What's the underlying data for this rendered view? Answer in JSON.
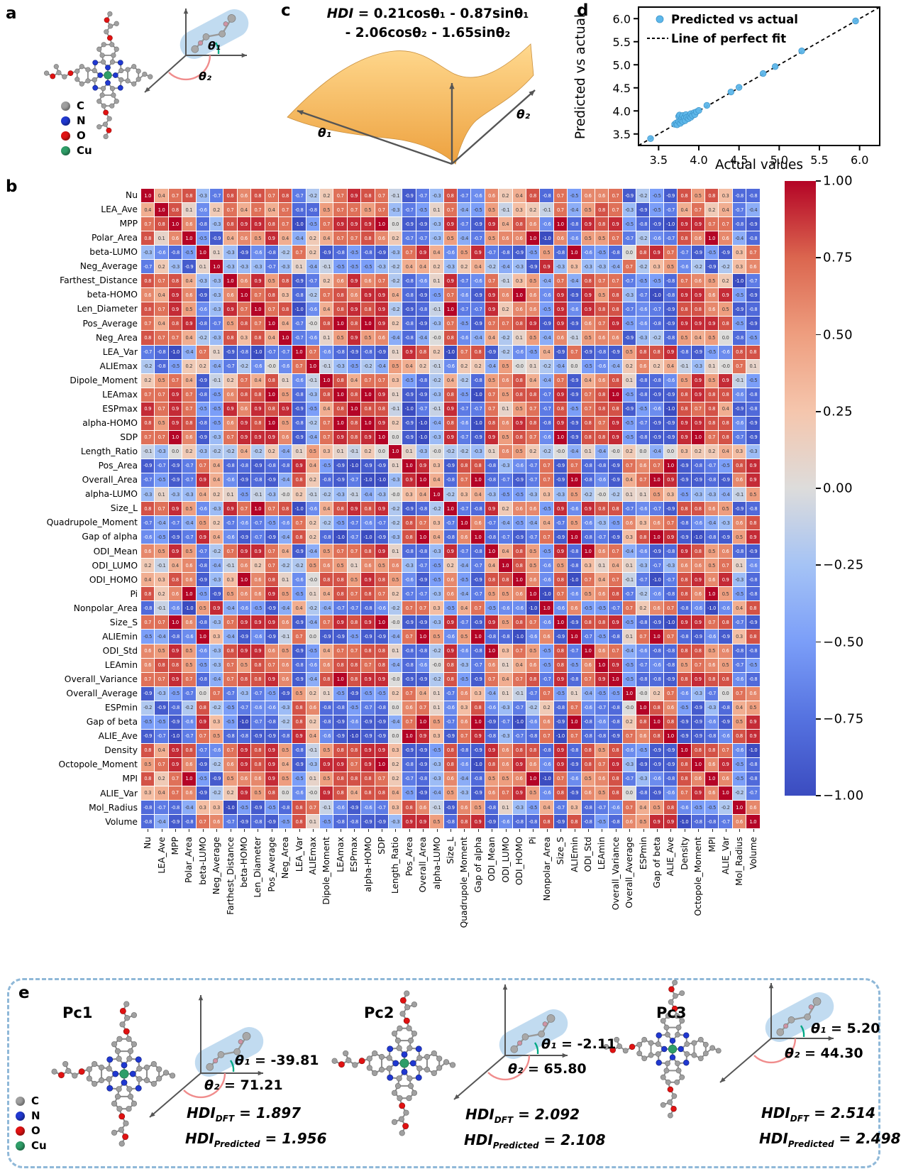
{
  "colors": {
    "carbon": "#a0a0a0",
    "nitrogen": "#2038d0",
    "oxygen": "#e01212",
    "copper": "#2f9e68",
    "scatter_point": "#5db7ea",
    "capsule": "#a9cdea",
    "equation_box": "#fdeadd",
    "panel_e_border": "#8fb8d8",
    "colorbar_max": "#b40426",
    "colorbar_min": "#3b4cc0",
    "surface_top": "#ffd98f",
    "surface_bottom": "#eda13f"
  },
  "panel_a": {
    "label": "a",
    "theta1": "θ₁",
    "theta2": "θ₂",
    "legend": [
      {
        "symbol": "C",
        "color": "#a0a0a0"
      },
      {
        "symbol": "N",
        "color": "#2038d0"
      },
      {
        "symbol": "O",
        "color": "#e01212"
      },
      {
        "symbol": "Cu",
        "color": "#2f9e68"
      }
    ]
  },
  "panel_b": {
    "label": "b"
  },
  "panel_c": {
    "label": "c",
    "theta1": "θ₁",
    "theta2": "θ₂",
    "equation": {
      "lhs": "HDI",
      "rhs1": "= 0.21cosθ₁ - 0.87sinθ₁",
      "line2": "- 2.06cosθ₂ - 1.65sinθ₂"
    }
  },
  "panel_d": {
    "label": "d"
  },
  "panel_e": {
    "label": "e",
    "hdi_label": "HDI",
    "molecules": [
      {
        "name": "Pc1",
        "theta1_sym": "θ₁",
        "theta1_val": "= -39.81",
        "theta2_sym": "θ₂",
        "theta2_val": "= 71.21",
        "hdi_dft_sub": "DFT",
        "hdi_dft_val": "= 1.897",
        "hdi_pred_sub": "Predicted",
        "hdi_pred_val": "= 1.956"
      },
      {
        "name": "Pc2",
        "theta1_sym": "θ₁",
        "theta1_val": "= -2.11",
        "theta2_sym": "θ₂",
        "theta2_val": "= 65.80",
        "hdi_dft_sub": "DFT",
        "hdi_dft_val": "= 2.092",
        "hdi_pred_sub": "Predicted",
        "hdi_pred_val": "= 2.108"
      },
      {
        "name": "Pc3",
        "theta1_sym": "θ₁",
        "theta1_val": "= 5.20",
        "theta2_sym": "θ₂",
        "theta2_val": "= 44.30",
        "hdi_dft_sub": "DFT",
        "hdi_dft_val": "= 2.514",
        "hdi_pred_sub": "Predicted",
        "hdi_pred_val": "= 2.498"
      }
    ]
  },
  "chart_data": [
    {
      "id": "correlation_heatmap",
      "type": "heatmap",
      "title": "",
      "colorbar_ticks": [
        "1.00",
        "0.75",
        "0.50",
        "0.25",
        "0.00",
        "−0.25",
        "−0.50",
        "−0.75",
        "−1.00"
      ],
      "value_range": [
        -1,
        1
      ],
      "categories": [
        "Nu",
        "LEA_Ave",
        "MPP",
        "Polar_Area",
        "beta-LUMO",
        "Neg_Average",
        "Farthest_Distance",
        "beta-HOMO",
        "Len_Diameter",
        "Pos_Average",
        "Neg_Area",
        "LEA_Var",
        "ALIEmax",
        "Dipole_Moment",
        "LEAmax",
        "ESPmax",
        "alpha-HOMO",
        "SDP",
        "Length_Ratio",
        "Pos_Area",
        "Overall_Area",
        "alpha-LUMO",
        "Size_L",
        "Quadrupole_Moment",
        "Gap of alpha",
        "ODI_Mean",
        "ODI_LUMO",
        "ODI_HOMO",
        "Pi",
        "Nonpolar_Area",
        "Size_S",
        "ALIEmin",
        "ODI_Std",
        "LEAmin",
        "Overall_Variance",
        "Overall_Average",
        "ESPmin",
        "Gap of beta",
        "ALIE_Ave",
        "Density",
        "Octopole_Moment",
        "MPI",
        "ALIE_Var",
        "Mol_Radius",
        "Volume"
      ],
      "matrix_rows": [
        "1.0 0.4 0.7 0.8 -0.3 -0.7 0.8 0.6 0.8 0.7 0.8 -0.7 -0.2 0.2 0.7 0.9 0.8 0.7 -0.1 -0.9 -0.7 -0.3 0.8 -0.7 -0.6 0.6 0.2 0.4 0.8 -0.8 0.7 -0.5 0.6 0.6 0.7 -0.9 -0.2 -0.5 -0.9 0.8 0.5 0.8 0.3 -0.8 -0.8",
        "0.4 1.0 0.8 0.1 -0.6 0.2 0.7 0.4 0.7 0.4 0.7 -0.8 -0.8 0.5 0.7 0.7 0.5 0.7 -0.3 -0.7 -0.5 0.1 0.7 -0.4 -0.5 0.5 -0.1 0.3 0.2 -0.1 0.7 -0.4 0.5 0.8 0.7 -0.3 -0.9 -0.5 -0.7 0.4 0.7 0.2 0.4 -0.7 -0.4",
        "0.7 0.8 1.0 0.6 -0.8 -0.3 0.8 0.9 0.9 0.8 0.7 -1.0 -0.5 0.7 0.9 0.9 0.9 1.0 0.0 -0.9 -0.9 -0.3 0.9 -0.7 -0.9 0.9 0.4 0.8 0.6 -0.6 1.0 -0.8 0.9 0.8 0.9 -0.5 -0.8 -0.9 -1.0 0.9 0.9 0.7 0.7 -0.8 -0.9",
        "0.8 0.1 0.6 1.0 -0.5 -0.9 0.4 0.6 0.5 0.9 0.4 -0.4 0.2 0.4 0.7 0.7 0.8 0.6 0.2 -0.7 -0.7 -0.3 0.5 -0.4 -0.7 0.5 0.6 0.6 1.0 -1.0 0.6 -0.6 0.5 0.5 0.7 -0.7 -0.2 -0.6 -0.7 0.8 0.6 1.0 0.6 -0.4 -0.8",
        "-0.3 -0.6 -0.8 -0.5 1.0 0.1 -0.3 -0.9 -0.6 -0.8 -0.2 0.7 0.2 -0.9 -0.8 -0.5 -0.8 -0.9 -0.3 0.7 0.9 0.4 -0.6 0.5 0.9 -0.7 -0.8 -0.9 -0.5 0.5 -0.8 1.0 -0.6 -0.5 -0.8 0.0 0.8 0.9 0.7 -0.7 -0.9 -0.5 -0.9 0.3 0.7",
        "-0.7 0.2 -0.3 -0.9 0.1 1.0 -0.3 -0.3 -0.3 -0.7 -0.3 0.1 -0.4 -0.1 -0.5 -0.5 -0.5 -0.3 -0.2 0.4 0.4 0.2 -0.3 0.2 0.4 -0.2 -0.4 -0.3 -0.9 0.9 -0.3 0.3 -0.3 -0.3 -0.4 0.7 -0.2 0.3 0.5 -0.6 -0.2 -0.9 -0.2 0.3 0.6",
        "0.8 0.7 0.8 0.4 -0.3 -0.3 1.0 0.6 0.9 0.5 0.8 -0.9 -0.7 0.2 0.6 0.9 0.6 0.7 -0.2 -0.8 -0.6 0.1 0.9 -0.7 -0.6 0.7 -0.1 0.3 0.5 -0.4 0.7 -0.4 0.8 0.7 0.7 -0.7 -0.5 -0.5 -0.8 0.7 0.6 0.5 0.2 -1.0 -0.7",
        "0.6 0.4 0.9 0.6 -0.9 -0.3 0.6 1.0 0.7 0.8 0.3 -0.8 -0.2 0.7 0.8 0.6 0.9 0.9 0.4 -0.8 -0.9 -0.5 0.7 -0.6 -0.9 0.9 0.6 1.0 0.6 -0.6 0.9 -0.9 0.9 0.5 0.8 -0.3 -0.7 -1.0 -0.8 0.9 0.9 0.6 0.9 -0.5 -0.9",
        "0.8 0.7 0.9 0.5 -0.6 -0.3 0.9 0.7 1.0 0.7 0.8 -1.0 -0.6 0.4 0.8 0.9 0.8 0.9 -0.2 -0.9 -0.8 -0.1 1.0 -0.7 -0.7 0.9 0.2 0.6 0.6 -0.5 0.9 -0.6 0.9 0.8 0.8 -0.7 -0.6 -0.7 -0.9 0.8 0.8 0.6 0.5 -0.9 -0.8",
        "0.7 0.4 0.8 0.9 -0.8 -0.7 0.5 0.8 0.7 1.0 0.4 -0.7 -0.0 0.8 1.0 0.8 1.0 0.9 0.2 -0.8 -0.9 -0.3 0.7 -0.5 -0.9 0.7 0.7 0.8 0.9 -0.9 0.9 -0.9 0.6 0.7 0.9 -0.5 -0.6 -0.8 -0.9 0.9 0.9 0.9 0.8 -0.5 -0.9",
        "0.8 0.7 0.7 0.4 -0.2 -0.3 0.8 0.3 0.8 0.4 1.0 -0.7 -0.6 0.1 0.5 0.9 0.5 0.6 -0.4 -0.8 -0.4 -0.0 0.8 -0.6 -0.4 0.4 -0.2 0.1 0.5 -0.4 0.6 -0.1 0.5 0.6 0.6 -0.9 -0.3 -0.2 -0.8 0.5 0.4 0.5 0.0 -0.8 -0.5",
        "-0.7 -0.8 -1.0 -0.4 0.7 0.1 -0.9 -0.8 -1.0 -0.7 -0.7 1.0 0.7 -0.6 -0.8 -0.9 -0.8 -0.9 0.1 0.9 0.8 0.2 -1.0 0.7 0.8 -0.9 -0.2 -0.6 -0.5 0.4 -0.9 0.7 -0.9 -0.8 -0.9 0.5 0.8 0.8 0.9 -0.8 -0.9 -0.5 -0.6 0.8 0.8",
        "-0.2 -0.8 -0.5 0.2 0.2 -0.4 -0.7 -0.2 -0.6 -0.0 -0.6 0.7 1.0 -0.1 -0.3 -0.5 -0.2 -0.4 0.5 0.4 0.2 -0.1 -0.6 0.2 0.2 -0.4 0.5 -0.0 0.1 -0.2 -0.4 0.0 -0.5 -0.6 -0.4 0.2 0.6 0.2 0.4 -0.1 -0.3 0.1 -0.0 0.7 0.1",
        "0.2 0.5 0.7 0.4 -0.9 -0.1 0.2 0.7 0.4 0.8 0.1 -0.6 -0.1 1.0 0.8 0.4 0.7 0.7 0.3 -0.5 -0.8 -0.2 0.4 -0.2 -0.8 0.5 0.6 0.8 0.4 -0.4 0.7 -0.9 0.4 0.6 0.8 0.1 -0.8 -0.8 -0.6 0.5 0.9 0.5 0.9 -0.1 -0.5",
        "0.7 0.7 0.9 0.7 -0.8 -0.5 0.6 0.8 0.8 1.0 0.5 -0.8 -0.3 0.8 1.0 0.8 1.0 0.9 0.1 -0.9 -0.9 -0.3 0.8 -0.5 -1.0 0.7 0.5 0.8 0.8 -0.7 0.9 -0.9 0.7 0.8 1.0 -0.5 -0.8 -0.9 -0.9 0.8 0.9 0.8 0.8 -0.6 -0.8",
        "0.9 0.7 0.9 0.7 -0.5 -0.5 0.9 0.6 0.9 0.8 0.9 -0.9 -0.5 0.4 0.8 1.0 0.8 0.8 -0.1 -1.0 -0.7 -0.1 0.9 -0.7 -0.7 0.7 0.1 0.5 0.7 -0.7 0.8 -0.5 0.7 0.8 0.8 -0.9 -0.5 -0.6 -1.0 0.8 0.7 0.8 0.4 -0.9 -0.8",
        "0.8 0.5 0.9 0.8 -0.8 -0.5 0.6 0.9 0.8 1.0 0.5 -0.8 -0.2 0.7 1.0 0.8 1.0 0.9 0.2 -0.9 -1.0 -0.4 0.8 -0.6 -1.0 0.8 0.6 0.9 0.8 -0.8 0.9 -0.9 0.8 0.7 0.9 -0.5 -0.7 -0.9 -0.9 0.9 0.9 0.8 0.8 -0.6 -0.9",
        "0.7 0.7 1.0 0.6 -0.9 -0.3 0.7 0.9 0.9 0.9 0.6 -0.9 -0.4 0.7 0.9 0.8 0.9 1.0 0.0 -0.9 -1.0 -0.3 0.9 -0.7 -0.9 0.9 0.5 0.8 0.7 -0.6 1.0 -0.9 0.8 0.8 0.9 -0.5 -0.8 -0.9 -0.9 0.9 1.0 0.7 0.8 -0.7 -0.9",
        "-0.1 -0.3 0.0 0.2 -0.3 -0.2 -0.2 0.4 -0.2 0.2 -0.4 0.1 0.5 0.3 0.1 -0.1 0.2 0.0 1.0 0.1 -0.3 -0.0 -0.2 -0.2 -0.3 0.1 0.6 0.5 0.2 -0.2 -0.0 -0.4 0.1 -0.4 -0.0 0.2 0.0 -0.4 0.0 0.3 0.2 0.2 0.4 0.3 -0.3",
        "-0.9 -0.7 -0.9 -0.7 0.7 0.4 -0.8 -0.8 -0.9 -0.8 -0.8 0.9 0.4 -0.5 -0.9 -1.0 -0.9 -0.9 0.1 1.0 0.9 0.3 -0.9 0.8 0.8 -0.8 -0.3 -0.6 -0.7 0.7 -0.9 0.7 -0.8 -0.8 -0.9 0.7 0.6 0.7 1.0 -0.9 -0.8 -0.7 -0.5 0.8 0.9",
        "-0.7 -0.5 -0.9 -0.7 0.9 0.4 -0.6 -0.9 -0.8 -0.9 -0.4 0.8 0.2 -0.8 -0.9 -0.7 -1.0 -1.0 -0.3 0.9 1.0 0.4 -0.8 0.7 1.0 -0.8 -0.7 -0.9 -0.7 0.7 -0.9 1.0 -0.8 -0.6 -0.9 0.4 0.7 1.0 0.9 -0.9 -0.9 -0.8 -0.9 0.6 0.9",
        "-0.3 0.1 -0.3 -0.3 0.4 0.2 0.1 -0.5 -0.1 -0.3 -0.0 0.2 -0.1 -0.2 -0.3 -0.1 -0.4 -0.3 -0.0 0.3 0.4 1.0 -0.2 0.3 0.4 -0.3 -0.5 -0.5 -0.3 0.3 -0.3 0.5 -0.2 -0.0 -0.2 0.1 0.1 0.5 0.3 -0.5 -0.3 -0.3 -0.4 -0.1 0.5",
        "0.8 0.7 0.9 0.5 -0.6 -0.3 0.9 0.7 1.0 0.7 0.8 -1.0 -0.6 0.4 0.8 0.9 0.8 0.9 -0.2 -0.9 -0.8 -0.2 1.0 -0.7 -0.8 0.9 0.2 0.6 0.6 -0.5 0.9 -0.6 0.9 0.8 0.8 -0.7 -0.6 -0.7 -0.9 0.8 0.8 0.6 0.5 -0.9 -0.8",
        "-0.7 -0.4 -0.7 -0.4 0.5 0.2 -0.7 -0.6 -0.7 -0.5 -0.6 0.7 0.2 -0.2 -0.5 -0.7 -0.6 -0.7 -0.2 0.8 0.7 0.3 -0.7 1.0 0.6 -0.7 -0.4 -0.5 -0.4 0.4 -0.7 0.5 -0.6 -0.3 -0.5 0.6 0.3 0.6 0.7 -0.8 -0.6 -0.4 -0.3 0.6 0.8",
        "-0.6 -0.5 -0.9 -0.7 0.9 0.4 -0.6 -0.9 -0.7 -0.9 -0.4 0.8 0.2 -0.8 -1.0 -0.7 -1.0 -0.9 -0.3 0.8 1.0 0.4 -0.8 0.6 1.0 -0.8 -0.7 -0.9 -0.7 0.7 -0.9 1.0 -0.8 -0.7 -0.9 0.3 0.8 1.0 0.9 -0.9 -1.0 -0.8 -0.9 0.5 0.9",
        "0.6 0.5 0.9 0.5 -0.7 -0.2 0.7 0.9 0.9 0.7 0.4 -0.9 -0.4 0.5 0.7 0.7 0.8 0.9 0.1 -0.8 -0.8 -0.3 0.9 -0.7 -0.8 1.0 0.4 0.8 0.5 -0.5 0.9 -0.8 1.0 0.6 0.7 -0.4 -0.6 -0.9 -0.8 0.9 0.8 0.5 0.6 -0.8 -0.9",
        "0.2 -0.1 0.4 0.6 -0.8 -0.4 -0.1 0.6 0.2 0.7 -0.2 -0.2 0.5 0.6 0.5 0.1 0.6 0.5 0.6 -0.3 -0.7 -0.5 0.2 -0.4 -0.7 0.4 1.0 0.8 0.5 -0.6 0.5 -0.8 0.3 0.1 0.4 0.1 -0.3 -0.7 -0.3 0.6 0.6 0.5 0.7 0.1 -0.6",
        "0.4 0.3 0.8 0.6 -0.9 -0.3 0.3 1.0 0.6 0.8 0.1 -0.6 -0.0 0.8 0.8 0.5 0.9 0.8 0.5 -0.6 -0.9 -0.5 0.6 -0.5 -0.9 0.8 0.8 1.0 0.6 -0.6 0.8 -1.0 0.7 0.4 0.7 -0.1 -0.7 -1.0 -0.7 0.8 0.9 0.6 0.9 -0.3 -0.8",
        "0.8 0.2 0.6 1.0 -0.5 -0.9 0.5 0.6 0.6 0.9 0.5 -0.5 0.1 0.4 0.8 0.7 0.8 0.7 0.2 -0.7 -0.7 -0.3 0.6 -0.4 -0.7 0.5 0.5 0.6 1.0 -1.0 0.7 -0.6 0.5 0.6 0.8 -0.7 -0.2 -0.6 -0.8 0.8 0.6 1.0 0.5 -0.5 -0.8",
        "-0.8 -0.1 -0.6 -1.0 0.5 0.9 -0.4 -0.6 -0.5 -0.9 -0.4 0.4 -0.2 -0.4 -0.7 -0.7 -0.8 -0.6 -0.2 0.7 0.7 0.3 -0.5 0.4 0.7 -0.5 -0.6 -0.6 -1.0 1.0 -0.6 0.6 -0.5 -0.5 -0.7 0.7 0.2 0.6 0.7 -0.8 -0.6 -1.0 -0.6 0.4 0.8",
        "0.7 0.7 1.0 0.6 -0.8 -0.3 0.7 0.9 0.9 0.9 0.6 -0.9 -0.4 0.7 0.9 0.8 0.9 1.0 -0.0 -0.9 -0.9 -0.3 0.9 -0.7 -0.9 0.9 0.5 0.8 0.7 -0.6 1.0 -0.9 0.8 0.8 0.9 -0.5 -0.8 -0.9 -1.0 0.9 0.9 0.7 0.8 -0.7 -0.9",
        "-0.5 -0.4 -0.8 -0.6 1.0 0.3 -0.4 -0.9 -0.6 -0.9 -0.1 0.7 0.0 -0.9 -0.9 -0.5 -0.9 -0.9 -0.4 0.7 1.0 0.5 -0.6 0.5 1.0 -0.8 -0.8 -1.0 -0.6 0.6 -0.9 1.0 -0.7 -0.5 -0.8 0.1 0.7 1.0 0.7 -0.8 -0.9 -0.6 -0.9 0.3 0.8",
        "0.6 0.5 0.9 0.5 -0.6 -0.3 0.8 0.9 0.9 0.6 0.5 -0.9 -0.5 0.4 0.7 0.7 0.8 0.8 0.1 -0.8 -0.8 -0.2 0.9 -0.6 -0.8 1.0 0.3 0.7 0.5 -0.5 0.8 -0.7 1.0 0.6 0.7 -0.4 -0.6 -0.8 -0.8 0.8 0.8 0.5 0.6 -0.8 -0.8",
        "0.6 0.8 0.8 0.5 -0.5 -0.3 0.7 0.5 0.8 0.7 0.6 -0.8 -0.6 0.6 0.8 0.8 0.7 0.8 -0.4 -0.8 -0.6 -0.0 0.8 -0.3 -0.7 0.6 0.1 0.4 0.6 -0.5 0.8 -0.5 0.6 1.0 0.9 -0.5 -0.7 -0.6 -0.8 0.5 0.7 0.6 0.5 -0.7 -0.5",
        "0.7 0.7 0.9 0.7 -0.8 -0.4 0.7 0.8 0.8 0.9 0.6 -0.9 -0.4 0.8 1.0 0.8 0.9 0.9 -0.0 -0.9 -0.9 -0.2 0.8 -0.5 -0.9 0.7 0.4 0.7 0.8 -0.7 0.9 -0.8 0.7 0.9 1.0 -0.5 -0.8 -0.8 -0.9 0.8 0.9 0.8 0.8 -0.6 -0.8",
        "-0.9 -0.3 -0.5 -0.7 0.0 0.7 -0.7 -0.3 -0.7 -0.5 -0.9 0.5 0.2 0.1 -0.5 -0.9 -0.5 -0.5 0.2 0.7 0.4 0.1 -0.7 0.6 0.3 -0.4 0.1 -0.1 -0.7 0.7 -0.5 0.1 -0.4 -0.5 -0.5 1.0 -0.0 0.2 0.7 -0.6 -0.3 -0.7 0.0 0.7 0.6",
        "-0.2 -0.9 -0.8 -0.2 0.8 -0.2 -0.5 -0.7 -0.6 -0.6 -0.3 0.8 0.6 -0.8 -0.8 -0.5 -0.7 -0.8 0.0 0.6 0.7 0.1 -0.6 0.3 0.8 -0.6 -0.3 -0.7 -0.2 0.2 -0.8 0.7 -0.6 -0.7 -0.8 -0.0 1.0 0.8 0.6 -0.5 -0.9 -0.3 -0.8 0.4 0.5",
        "-0.5 -0.5 -0.9 -0.6 0.9 0.3 -0.5 -1.0 -0.7 -0.8 -0.2 0.8 0.2 -0.8 -0.9 -0.6 -0.9 -0.9 -0.4 0.7 1.0 0.5 -0.7 0.6 1.0 -0.9 -0.7 -1.0 -0.6 0.6 -0.9 1.0 -0.8 -0.6 -0.8 0.2 0.8 1.0 0.8 -0.9 -0.9 -0.6 -0.9 0.5 0.9",
        "-0.9 -0.7 -1.0 -0.7 0.7 0.5 -0.8 -0.8 -0.9 -0.9 -0.8 0.9 0.4 -0.6 -0.9 -1.0 -0.9 -0.9 0.0 1.0 0.9 0.3 -0.9 0.7 0.9 -0.8 -0.3 -0.7 -0.8 0.7 -1.0 0.7 -0.8 -0.8 -0.9 0.7 0.6 0.8 1.0 -0.9 -0.9 -0.8 -0.6 0.8 0.9",
        "0.8 0.4 0.9 0.8 -0.7 -0.6 0.7 0.9 0.8 0.9 0.5 -0.8 -0.1 0.5 0.8 0.8 0.9 0.9 0.3 -0.9 -0.9 -0.5 0.8 -0.8 -0.9 0.9 0.6 0.8 0.8 -0.8 0.9 -0.8 0.8 0.5 0.8 -0.6 -0.5 -0.9 -0.9 1.0 0.8 0.8 0.7 -0.6 -1.0",
        "0.5 0.7 0.9 0.6 -0.9 -0.2 0.6 0.9 0.8 0.9 0.4 -0.9 -0.3 0.9 0.9 0.7 0.9 1.0 0.2 -0.8 -0.9 -0.3 0.8 -0.6 -1.0 0.8 0.6 0.9 0.6 -0.6 0.9 -0.9 0.8 0.7 0.9 -0.3 -0.9 -0.9 -0.9 0.8 1.0 0.6 0.9 -0.5 -0.8",
        "0.8 0.2 0.7 1.0 -0.5 -0.9 0.5 0.6 0.6 0.9 0.5 -0.5 0.1 0.5 0.8 0.8 0.8 0.7 0.2 -0.7 -0.8 -0.3 0.6 -0.4 -0.8 0.5 0.5 0.6 1.0 -1.0 0.7 -0.6 0.5 0.6 0.8 -0.7 -0.3 -0.6 -0.8 0.8 0.6 1.0 0.6 -0.5 -0.8",
        "0.3 0.4 0.7 0.6 -0.9 -0.2 0.2 0.9 0.5 0.8 0.0 -0.6 -0.0 0.9 0.8 0.4 0.8 0.8 0.4 -0.5 -0.9 -0.4 0.5 -0.3 -0.9 0.6 0.7 0.9 0.5 -0.6 0.8 -0.9 0.6 0.5 0.8 0.0 -0.8 -0.9 -0.6 0.7 0.9 0.6 1.0 -0.2 -0.7",
        "-0.8 -0.7 -0.8 -0.4 0.3 0.3 -1.0 -0.5 -0.9 -0.5 -0.8 0.8 0.7 -0.1 -0.6 -0.9 -0.6 -0.7 0.3 0.8 0.6 -0.1 -0.9 0.6 0.5 -0.8 0.1 -0.3 -0.5 0.4 -0.7 0.3 -0.8 -0.7 -0.6 0.7 0.4 0.5 0.8 -0.6 -0.5 -0.5 -0.2 1.0 0.6",
        "-0.8 -0.4 -0.9 -0.8 0.7 0.6 -0.7 -0.9 -0.8 -0.9 -0.5 0.8 0.1 -0.5 -0.8 -0.8 -0.9 -0.9 -0.3 0.9 0.9 0.5 -0.8 0.8 0.9 -0.9 -0.6 -0.8 -0.8 0.8 -0.9 0.8 -0.8 -0.5 -0.8 0.6 0.5 0.9 0.9 -1.0 -0.8 -0.8 -0.7 0.6 1.0"
      ]
    },
    {
      "id": "parity_plot",
      "type": "scatter",
      "title": "",
      "xlabel": "Actual values",
      "ylabel": "Predicted vs actual",
      "xlim": [
        3.25,
        6.25
      ],
      "ylim": [
        3.25,
        6.25
      ],
      "xticks": [
        3.5,
        4.0,
        4.5,
        5.0,
        5.5,
        6.0
      ],
      "yticks": [
        3.5,
        4.0,
        4.5,
        5.0,
        5.5,
        6.0
      ],
      "tick_labels": [
        "3.5",
        "4.0",
        "4.5",
        "5.0",
        "5.5",
        "6.0"
      ],
      "legend": [
        {
          "label": "Predicted vs actual",
          "marker": "circle"
        },
        {
          "label": "Line of perfect fit",
          "marker": "dashed-line"
        }
      ],
      "line": {
        "style": "dashed",
        "from": [
          3.25,
          3.25
        ],
        "to": [
          6.25,
          6.25
        ]
      },
      "points": [
        [
          3.4,
          3.4
        ],
        [
          3.7,
          3.71
        ],
        [
          3.72,
          3.74
        ],
        [
          3.73,
          3.7
        ],
        [
          3.75,
          3.77
        ],
        [
          3.75,
          3.88
        ],
        [
          3.76,
          3.91
        ],
        [
          3.77,
          3.73
        ],
        [
          3.78,
          3.8
        ],
        [
          3.79,
          3.86
        ],
        [
          3.8,
          3.77
        ],
        [
          3.8,
          3.9
        ],
        [
          3.82,
          3.85
        ],
        [
          3.83,
          3.79
        ],
        [
          3.84,
          3.92
        ],
        [
          3.85,
          3.86
        ],
        [
          3.87,
          3.83
        ],
        [
          3.88,
          3.89
        ],
        [
          3.9,
          3.86
        ],
        [
          3.9,
          3.94
        ],
        [
          3.92,
          3.9
        ],
        [
          3.94,
          3.96
        ],
        [
          3.95,
          3.92
        ],
        [
          3.97,
          3.98
        ],
        [
          4.0,
          4.01
        ],
        [
          4.1,
          4.12
        ],
        [
          4.4,
          4.41
        ],
        [
          4.5,
          4.51
        ],
        [
          4.8,
          4.81
        ],
        [
          4.95,
          4.96
        ],
        [
          5.28,
          5.3
        ],
        [
          5.95,
          5.95
        ]
      ]
    },
    {
      "id": "hdi_surface_3d",
      "type": "area",
      "title": "",
      "xlabel": "θ₁",
      "ylabel": "θ₂",
      "note": "3D response surface of HDI(θ₁,θ₂)"
    }
  ]
}
